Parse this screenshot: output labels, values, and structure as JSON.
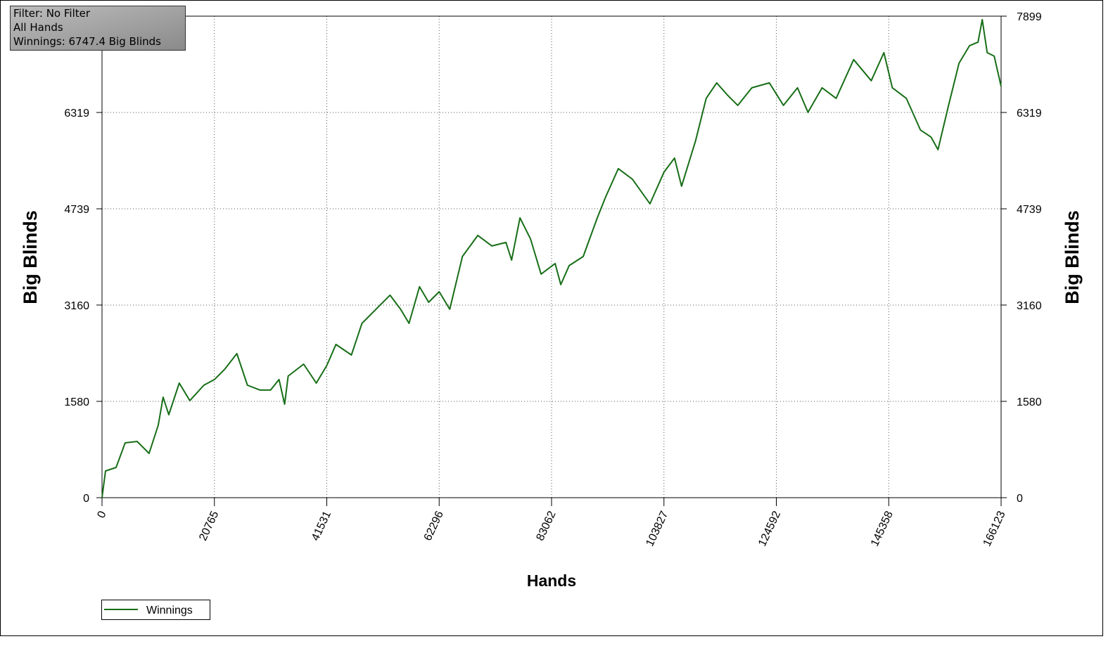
{
  "chart_data": {
    "type": "line",
    "info": [
      "Filter: No Filter",
      "All Hands",
      "Winnings: 6747.4 Big Blinds"
    ],
    "x_label": "Hands",
    "y_label": "Big Blinds",
    "xlim": [
      0,
      166123
    ],
    "xticks": [
      0,
      20765,
      41531,
      62296,
      83062,
      103827,
      124592,
      145358,
      166123
    ],
    "ylim": [
      0,
      7899
    ],
    "yticks": [
      0,
      1580,
      3160,
      4739,
      6319,
      7899
    ],
    "grid": true,
    "x": [
      0,
      649,
      2596,
      4283,
      6490,
      8697,
      10384,
      11292,
      12331,
      14278,
      16225,
      18821,
      20768,
      22715,
      24921,
      26868,
      29204,
      31151,
      32709,
      33747,
      34396,
      37252,
      39588,
      41535,
      43223,
      46078,
      48025,
      51270,
      53217,
      55164,
      56722,
      58669,
      60356,
      62304,
      64251,
      66587,
      69443,
      72039,
      74635,
      75673,
      77231,
      79178,
      81125,
      83721,
      84759,
      86317,
      88913,
      91509,
      93066,
      95402,
      97998,
      101243,
      103839,
      105786,
      107084,
      109680,
      111627,
      113574,
      115520,
      117467,
      120063,
      123308,
      125904,
      128500,
      130447,
      133043,
      135639,
      138884,
      142129,
      144465,
      146023,
      148619,
      151215,
      153162,
      154460,
      156407,
      158354,
      160301,
      161858,
      162637,
      163546,
      164844,
      166123
    ],
    "series": [
      {
        "name": "Winnings",
        "color": "#176e17",
        "values": [
          0,
          438,
          496,
          900,
          923,
          727,
          1188,
          1649,
          1361,
          1880,
          1592,
          1845,
          1938,
          2111,
          2364,
          1845,
          1765,
          1765,
          1938,
          1534,
          1995,
          2191,
          1880,
          2168,
          2514,
          2341,
          2860,
          3149,
          3322,
          3091,
          2860,
          3460,
          3206,
          3379,
          3091,
          3956,
          4302,
          4129,
          4187,
          3898,
          4591,
          4245,
          3668,
          3841,
          3495,
          3806,
          3956,
          4591,
          4937,
          5398,
          5225,
          4821,
          5340,
          5571,
          5110,
          5859,
          6551,
          6805,
          6609,
          6436,
          6724,
          6805,
          6436,
          6724,
          6321,
          6724,
          6551,
          7186,
          6840,
          7301,
          6724,
          6551,
          6032,
          5917,
          5709,
          6436,
          7128,
          7416,
          7474,
          7843,
          7301,
          7243,
          6747.4
        ]
      }
    ]
  }
}
